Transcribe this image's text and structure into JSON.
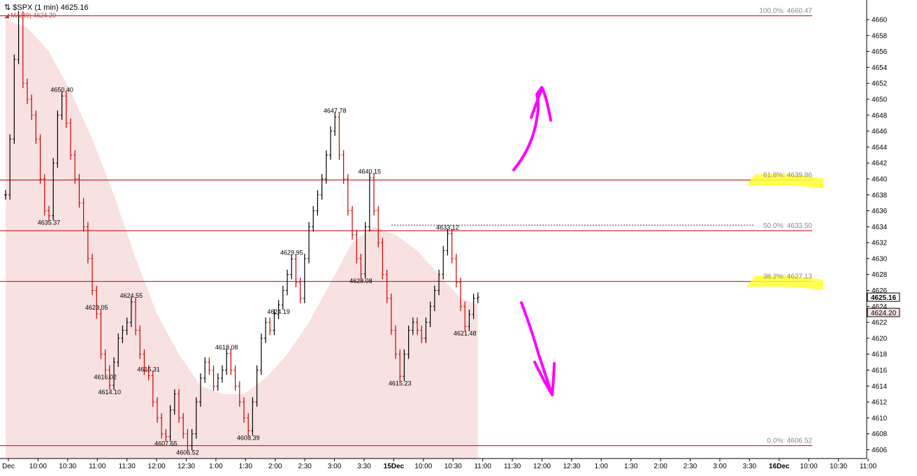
{
  "header": {
    "title": "$SPX (1 min) 4625.16",
    "ma_label": "MA(89) 4624.20"
  },
  "colors": {
    "price_up": "#000000",
    "price_down": "#cc0000",
    "ma_fill": "#f8e1e1",
    "fib_line": "#cc0000",
    "highlight": "#ffff33",
    "arrow": "#ff00ff"
  },
  "chart_data": {
    "type": "line",
    "y_axis": {
      "min": 4605,
      "max": 4661,
      "ticks": [
        4606,
        4608,
        4610,
        4612,
        4614,
        4616,
        4618,
        4620,
        4622,
        4624,
        4626,
        4628,
        4630,
        4632,
        4634,
        4636,
        4638,
        4640,
        4642,
        4644,
        4646,
        4648,
        4650,
        4652,
        4654,
        4656,
        4658,
        4660
      ],
      "last_price": "4625.16",
      "last_ma": "4624.20",
      "side": "right"
    },
    "x_axis": {
      "tick_labels": [
        "Dec",
        "10:00",
        "10:30",
        "11:00",
        "11:30",
        "12:00",
        "12:30",
        "1:00",
        "1:30",
        "2:00",
        "2:30",
        "3:00",
        "3:30",
        "15Dec",
        "10:00",
        "10:30",
        "11:00",
        "11:30",
        "12:00",
        "12:30",
        "1:00",
        "1:30",
        "2:00",
        "2:30",
        "3:00",
        "3:30",
        "16Dec",
        "10:00",
        "10:30",
        "11:00"
      ],
      "bold_labels": [
        "15Dec",
        "16Dec"
      ]
    },
    "fib_levels": [
      {
        "label": "100.0%: 4660.47",
        "value": 4660.47,
        "highlight": false
      },
      {
        "label": "61.8%: 4639.86",
        "value": 4639.86,
        "highlight": true
      },
      {
        "label": "50.0%: 4633.50",
        "value": 4633.5,
        "highlight": false
      },
      {
        "label": "38.2%: 4627.13",
        "value": 4627.13,
        "highlight": true
      },
      {
        "label": "0.0%: 4606.52",
        "value": 4606.52,
        "highlight": false
      }
    ],
    "dashed_level": {
      "value": 4634.2
    },
    "price_series": {
      "name": "$SPX",
      "points": [
        [
          0,
          4638
        ],
        [
          1,
          4645
        ],
        [
          2,
          4655
        ],
        [
          3,
          4660.47
        ],
        [
          4,
          4652
        ],
        [
          5,
          4650
        ],
        [
          6,
          4648
        ],
        [
          7,
          4645
        ],
        [
          8,
          4640
        ],
        [
          9,
          4636
        ],
        [
          10,
          4635.37
        ],
        [
          11,
          4642
        ],
        [
          12,
          4648
        ],
        [
          13,
          4650.4
        ],
        [
          14,
          4647
        ],
        [
          15,
          4643
        ],
        [
          16,
          4640
        ],
        [
          17,
          4637
        ],
        [
          18,
          4634
        ],
        [
          19,
          4630
        ],
        [
          20,
          4626
        ],
        [
          21,
          4623.05
        ],
        [
          22,
          4618
        ],
        [
          23,
          4616.02
        ],
        [
          24,
          4614.1
        ],
        [
          25,
          4617
        ],
        [
          26,
          4620
        ],
        [
          27,
          4621
        ],
        [
          28,
          4622
        ],
        [
          29,
          4624.55
        ],
        [
          30,
          4621
        ],
        [
          31,
          4618
        ],
        [
          32,
          4616
        ],
        [
          33,
          4615.31
        ],
        [
          34,
          4612
        ],
        [
          35,
          4610
        ],
        [
          36,
          4608
        ],
        [
          37,
          4607.65
        ],
        [
          38,
          4611
        ],
        [
          39,
          4613
        ],
        [
          40,
          4610
        ],
        [
          41,
          4608
        ],
        [
          42,
          4606.52
        ],
        [
          43,
          4608
        ],
        [
          44,
          4612
        ],
        [
          45,
          4615
        ],
        [
          46,
          4617
        ],
        [
          47,
          4616
        ],
        [
          48,
          4614
        ],
        [
          49,
          4615
        ],
        [
          50,
          4616
        ],
        [
          51,
          4618.08
        ],
        [
          52,
          4616
        ],
        [
          53,
          4614
        ],
        [
          54,
          4612
        ],
        [
          55,
          4610
        ],
        [
          56,
          4608.39
        ],
        [
          57,
          4612
        ],
        [
          58,
          4616
        ],
        [
          59,
          4620
        ],
        [
          60,
          4622
        ],
        [
          61,
          4621
        ],
        [
          62,
          4623
        ],
        [
          63,
          4624.19
        ],
        [
          64,
          4626
        ],
        [
          65,
          4628
        ],
        [
          66,
          4629.95
        ],
        [
          67,
          4627
        ],
        [
          68,
          4625
        ],
        [
          69,
          4630
        ],
        [
          70,
          4634
        ],
        [
          71,
          4636
        ],
        [
          72,
          4638
        ],
        [
          73,
          4640
        ],
        [
          74,
          4643
        ],
        [
          75,
          4646
        ],
        [
          76,
          4647.78
        ],
        [
          77,
          4643
        ],
        [
          78,
          4640
        ],
        [
          79,
          4636
        ],
        [
          80,
          4633
        ],
        [
          81,
          4630
        ],
        [
          82,
          4628.08
        ],
        [
          83,
          4634
        ],
        [
          84,
          4640.15
        ],
        [
          85,
          4636
        ],
        [
          86,
          4632
        ],
        [
          87,
          4628
        ],
        [
          88,
          4625
        ],
        [
          89,
          4621
        ],
        [
          90,
          4618
        ],
        [
          91,
          4615.23
        ],
        [
          92,
          4618
        ],
        [
          93,
          4621
        ],
        [
          94,
          4622
        ],
        [
          95,
          4621
        ],
        [
          96,
          4620
        ],
        [
          97,
          4622
        ],
        [
          98,
          4624
        ],
        [
          99,
          4626
        ],
        [
          100,
          4628
        ],
        [
          101,
          4631
        ],
        [
          102,
          4633.12
        ],
        [
          103,
          4630
        ],
        [
          104,
          4627
        ],
        [
          105,
          4624
        ],
        [
          106,
          4621.48
        ],
        [
          107,
          4623
        ],
        [
          108,
          4625
        ],
        [
          109,
          4625.16
        ]
      ]
    },
    "ma_series": {
      "name": "MA(89)",
      "points": [
        [
          0,
          4660
        ],
        [
          5,
          4659
        ],
        [
          10,
          4656
        ],
        [
          15,
          4651
        ],
        [
          20,
          4645
        ],
        [
          25,
          4638
        ],
        [
          30,
          4630
        ],
        [
          35,
          4623
        ],
        [
          40,
          4618
        ],
        [
          45,
          4614
        ],
        [
          50,
          4613
        ],
        [
          55,
          4613
        ],
        [
          60,
          4615
        ],
        [
          65,
          4618
        ],
        [
          70,
          4622
        ],
        [
          75,
          4627
        ],
        [
          80,
          4632
        ],
        [
          85,
          4634
        ],
        [
          90,
          4633
        ],
        [
          95,
          4631
        ],
        [
          100,
          4628
        ],
        [
          105,
          4625
        ],
        [
          109,
          4624.2
        ]
      ]
    },
    "price_labels": [
      {
        "x": 13,
        "y": 4650.4,
        "text": "4650.40",
        "pos": "above"
      },
      {
        "x": 10,
        "y": 4635.37,
        "text": "4635.37",
        "pos": "below"
      },
      {
        "x": 21,
        "y": 4623.05,
        "text": "4623.05",
        "pos": "above"
      },
      {
        "x": 29,
        "y": 4624.55,
        "text": "4624.55",
        "pos": "above"
      },
      {
        "x": 23,
        "y": 4616.02,
        "text": "4616.02",
        "pos": "below"
      },
      {
        "x": 24,
        "y": 4614.1,
        "text": "4614.10",
        "pos": "below"
      },
      {
        "x": 33,
        "y": 4615.31,
        "text": "4615.31",
        "pos": "above"
      },
      {
        "x": 37,
        "y": 4607.65,
        "text": "4607.65",
        "pos": "below"
      },
      {
        "x": 42,
        "y": 4606.52,
        "text": "4606.52",
        "pos": "below"
      },
      {
        "x": 51,
        "y": 4618.08,
        "text": "4618.08",
        "pos": "above"
      },
      {
        "x": 56,
        "y": 4608.39,
        "text": "4608.39",
        "pos": "below"
      },
      {
        "x": 66,
        "y": 4629.95,
        "text": "4629.95",
        "pos": "above"
      },
      {
        "x": 63,
        "y": 4624.19,
        "text": "4624.19",
        "pos": "below"
      },
      {
        "x": 76,
        "y": 4647.78,
        "text": "4647.78",
        "pos": "above"
      },
      {
        "x": 84,
        "y": 4640.15,
        "text": "4640.15",
        "pos": "above"
      },
      {
        "x": 82,
        "y": 4628.08,
        "text": "4628.08",
        "pos": "below"
      },
      {
        "x": 91,
        "y": 4615.23,
        "text": "4615.23",
        "pos": "below"
      },
      {
        "x": 102,
        "y": 4633.12,
        "text": "4633.12",
        "pos": "above"
      },
      {
        "x": 106,
        "y": 4621.48,
        "text": "4621.48",
        "pos": "below"
      }
    ],
    "grid": false,
    "legend": "top-left"
  }
}
